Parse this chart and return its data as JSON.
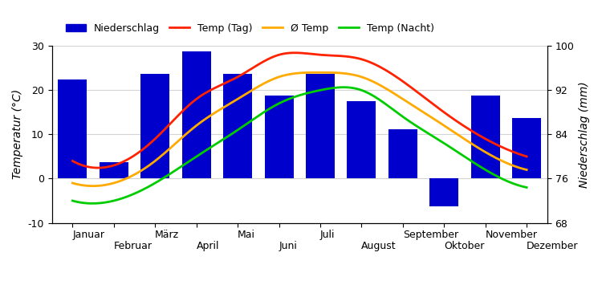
{
  "months": [
    "Januar",
    "Februar",
    "März",
    "April",
    "Mai",
    "Juni",
    "Juli",
    "August",
    "September",
    "Oktober",
    "November",
    "Dezember"
  ],
  "months_odd": [
    "Januar",
    "März",
    "Mai",
    "Juli",
    "September",
    "November"
  ],
  "months_even": [
    "Februar",
    "April",
    "Juni",
    "August",
    "Oktober",
    "Dezember"
  ],
  "bar_values": [
    94,
    79,
    95,
    99,
    95,
    91,
    95,
    90,
    85,
    71,
    91,
    87
  ],
  "temp_day": [
    4,
    3,
    9,
    18,
    23,
    28,
    28,
    27,
    22,
    15,
    9,
    5
  ],
  "temp_avg": [
    -1,
    -1,
    4,
    12,
    18,
    23,
    24,
    23,
    18,
    12,
    6,
    2
  ],
  "temp_night": [
    -5,
    -5,
    -1,
    5,
    11,
    17,
    20,
    20,
    14,
    8,
    2,
    -2
  ],
  "bar_color": "#0000cc",
  "color_day": "#ff2200",
  "color_avg": "#ffaa00",
  "color_night": "#00cc00",
  "ylim_temp": [
    -10,
    30
  ],
  "ylim_precip": [
    68,
    100
  ],
  "ylabel_left": "Temperatur (°C)",
  "ylabel_right": "Niederschlag (mm)",
  "legend_labels": [
    "Niederschlag",
    "Temp (Tag)",
    "Ø Temp",
    "Temp (Nacht)"
  ],
  "title_fontsize": 11,
  "axis_fontsize": 10,
  "tick_fontsize": 9
}
